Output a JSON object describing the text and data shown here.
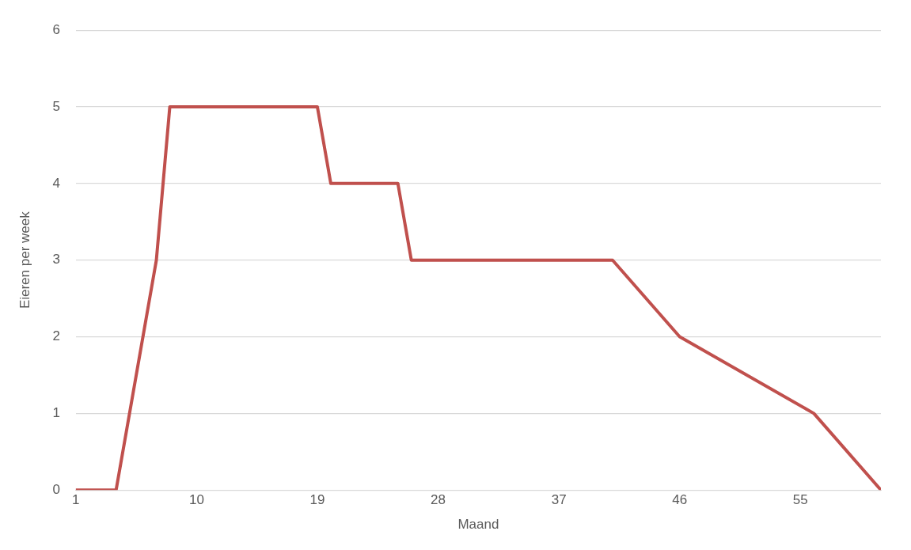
{
  "chart_data": {
    "type": "line",
    "xlabel": "Maand",
    "ylabel": "Eieren per week",
    "x": [
      1,
      4,
      7,
      8,
      19,
      20,
      25,
      26,
      41,
      46,
      56,
      61
    ],
    "series": [
      {
        "color": "#c0504d",
        "values": [
          0,
          0,
          3,
          5,
          5,
          4,
          4,
          3,
          3,
          2,
          1,
          0
        ]
      }
    ],
    "xlim": [
      1,
      61
    ],
    "xticks": [
      1,
      10,
      19,
      28,
      37,
      46,
      55
    ],
    "ylim": [
      0,
      6
    ],
    "yticks": [
      0,
      1,
      2,
      3,
      4,
      5,
      6
    ],
    "grid": "y",
    "legend": false,
    "marker": "none",
    "line_style": "solid"
  }
}
